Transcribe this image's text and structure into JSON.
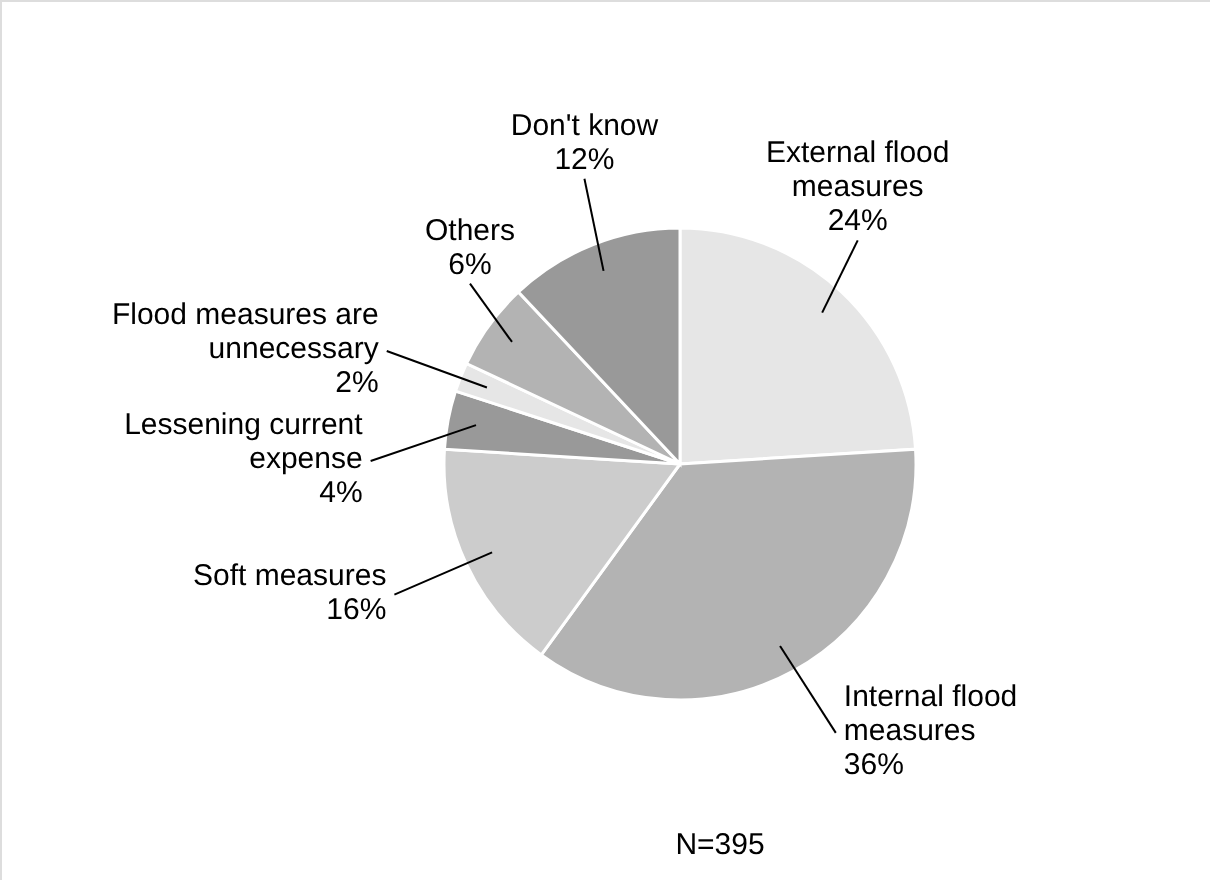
{
  "chart_data": {
    "type": "pie",
    "categories": [
      "External flood measures",
      "Internal flood measures",
      "Soft measures",
      "Lessening current expense",
      "Flood measures are unnecessary",
      "Others",
      "Don't know"
    ],
    "values": [
      24,
      36,
      16,
      4,
      2,
      6,
      12
    ],
    "value_labels": [
      "24%",
      "36%",
      "16%",
      "4%",
      "2%",
      "6%",
      "12%"
    ],
    "colors": [
      "#e6e6e6",
      "#b3b3b3",
      "#cccccc",
      "#999999",
      "#e6e6e6",
      "#b3b3b3",
      "#999999"
    ],
    "annotations": [
      "N=395"
    ]
  }
}
